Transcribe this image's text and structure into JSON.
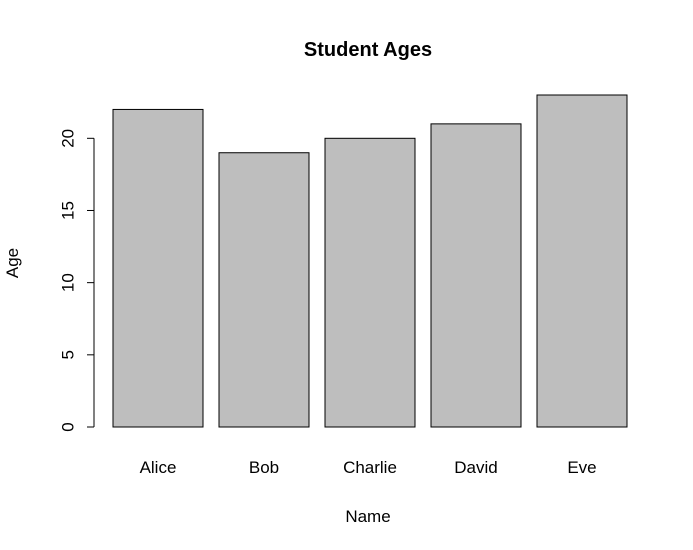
{
  "chart_data": {
    "type": "bar",
    "title": "Student Ages",
    "xlabel": "Name",
    "ylabel": "Age",
    "categories": [
      "Alice",
      "Bob",
      "Charlie",
      "David",
      "Eve"
    ],
    "values": [
      22,
      19,
      20,
      21,
      23
    ],
    "ylim": [
      0,
      23
    ],
    "yticks": [
      0,
      5,
      10,
      15,
      20
    ],
    "ytick_labels": [
      "0",
      "5",
      "10",
      "15",
      "20"
    ],
    "bar_color": "#bebebe",
    "grid": false,
    "legend": "none"
  }
}
